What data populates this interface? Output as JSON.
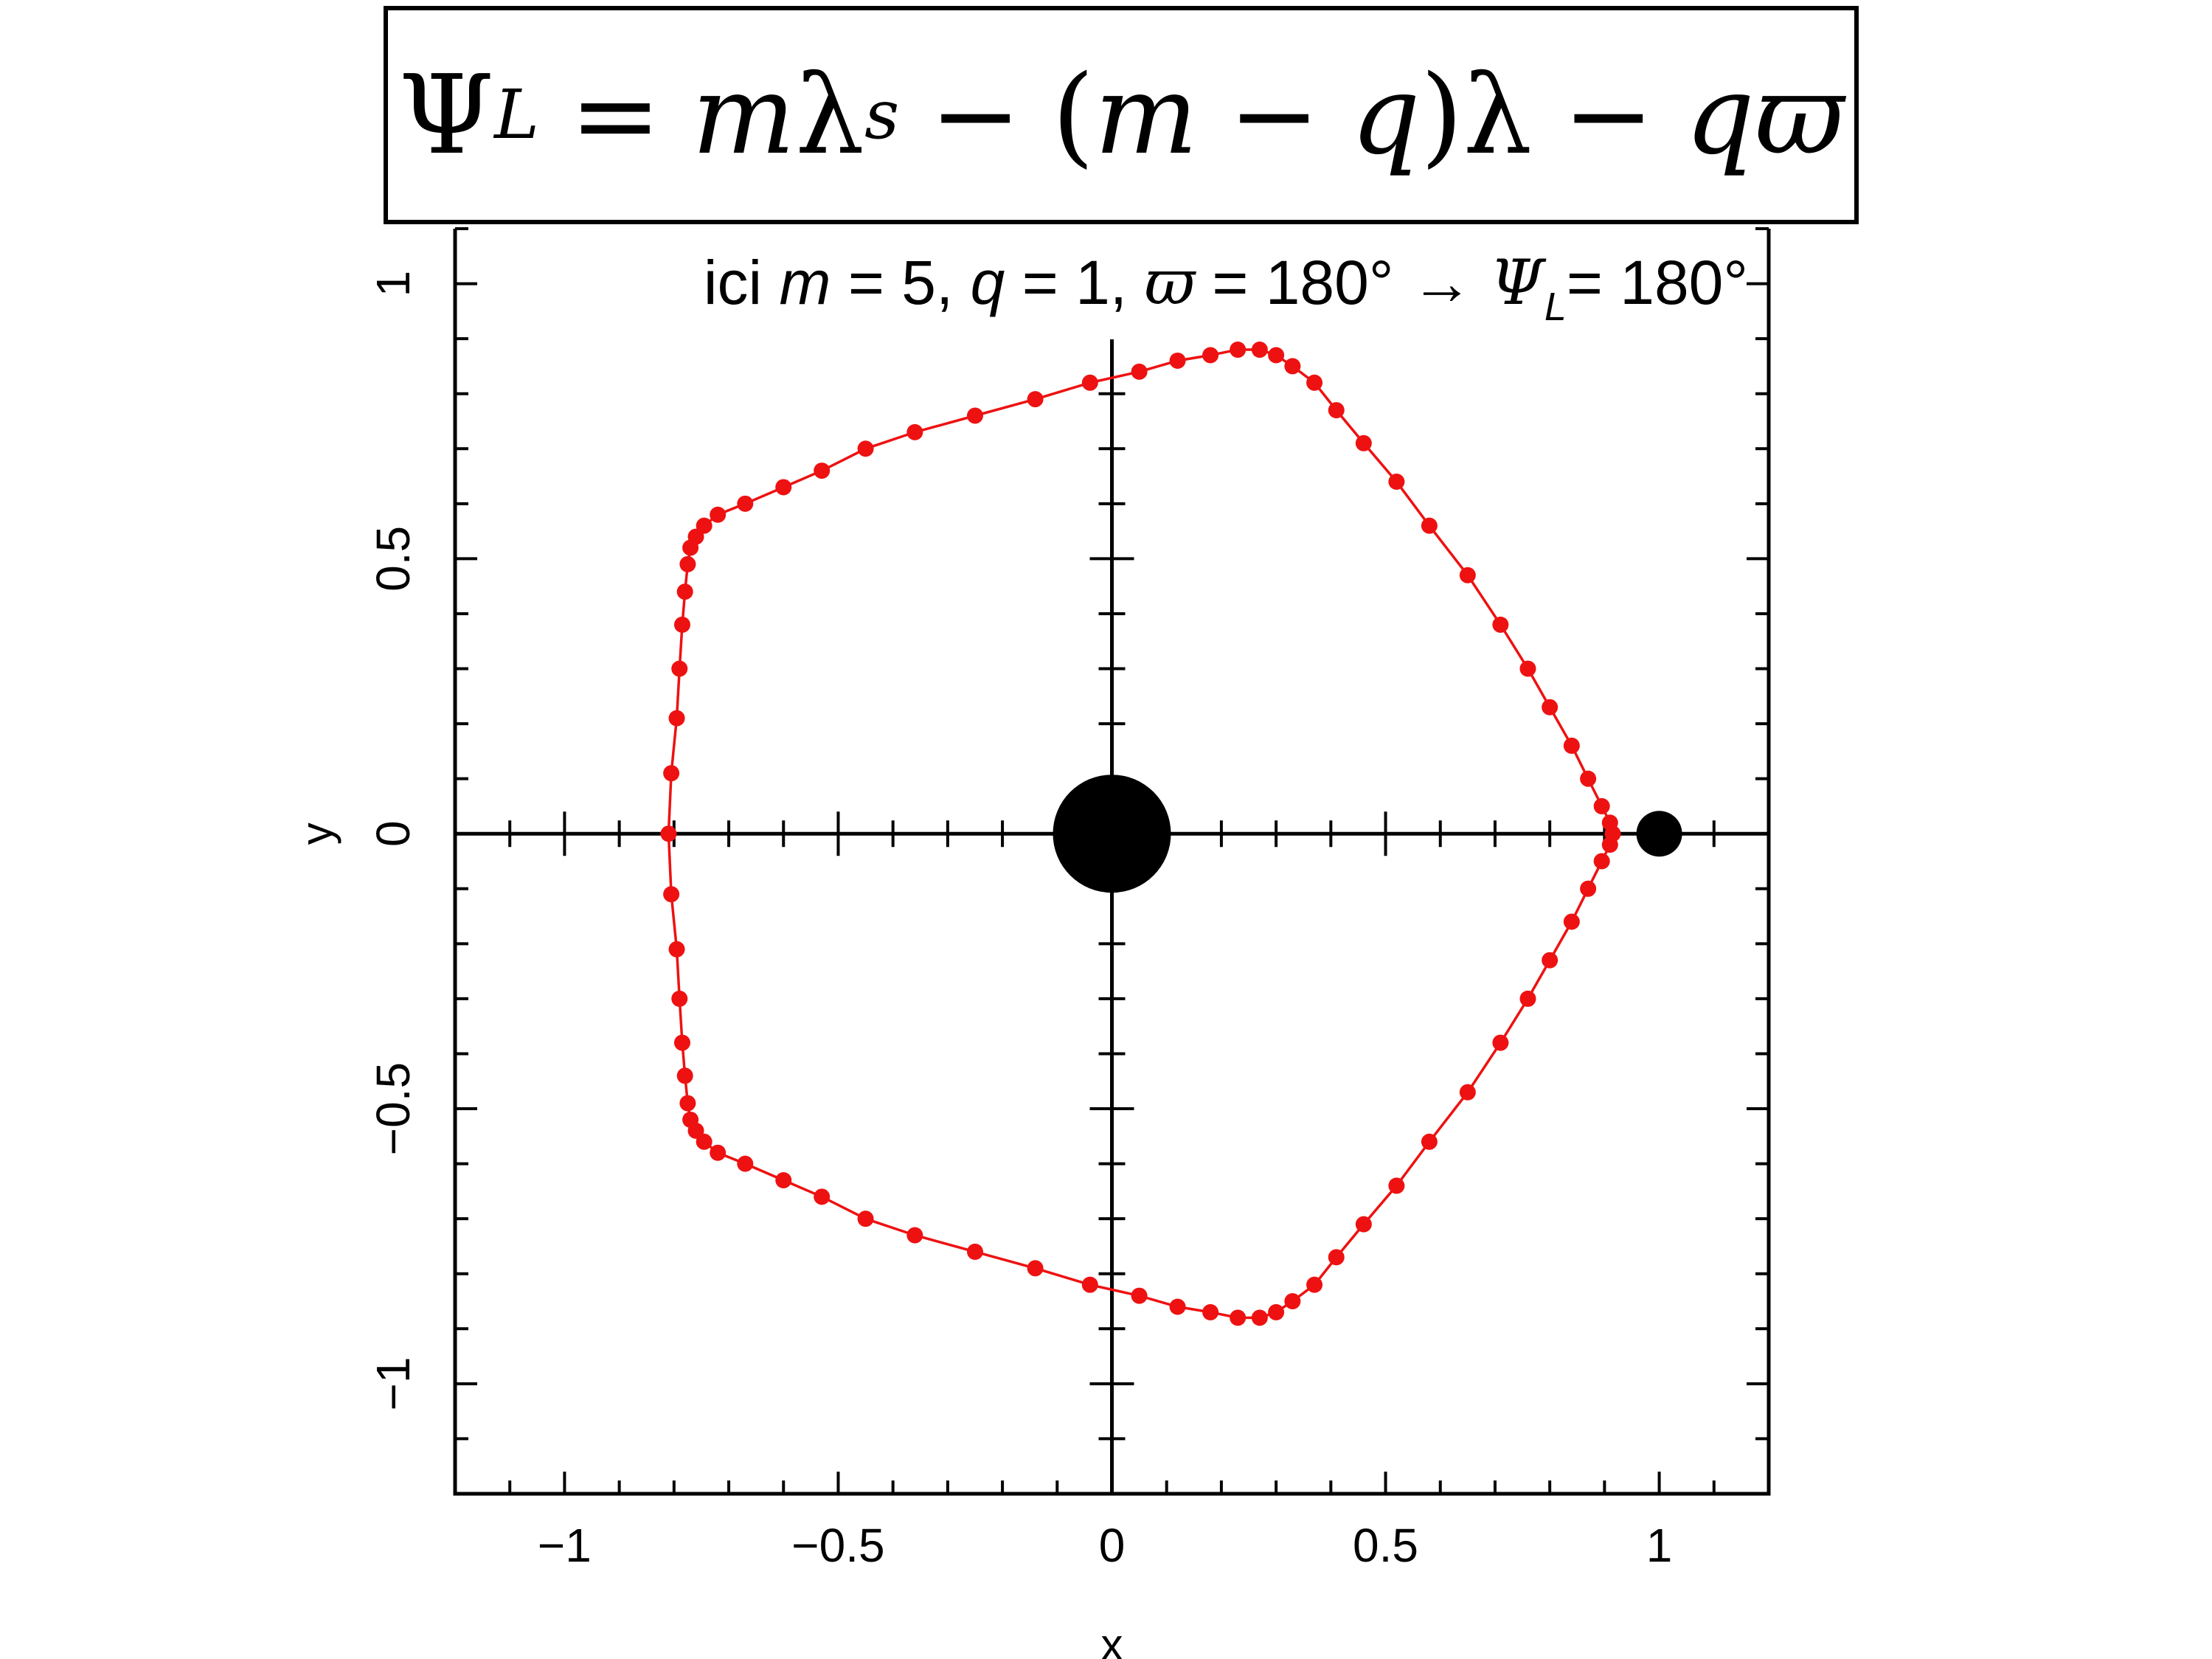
{
  "formula": {
    "psi": "Ψ",
    "psi_sub": "L",
    "eq": "=",
    "m1": "m",
    "lambda_s": "λ",
    "lambda_s_sub": "s",
    "minus1": "−",
    "paren_open": "(",
    "m2": "m",
    "minus2": "−",
    "q1": "q",
    "paren_close": ")",
    "lambda": "λ",
    "minus3": "−",
    "q2": "q",
    "varpi": "ϖ"
  },
  "annotation": {
    "prefix": "ici ",
    "m_sym": "m",
    "m_val": " = 5, ",
    "q_sym": "q",
    "q_val": " = 1, ",
    "varpi_sym": "ϖ",
    "varpi_val": " = 180° → ",
    "psi_sym": "Ψ",
    "psi_sub": "L",
    "psi_val": "= 180°"
  },
  "chart_data": {
    "type": "scatter",
    "xlabel": "x",
    "ylabel": "y",
    "xlim": [
      -1.2,
      1.2
    ],
    "ylim": [
      -1.2,
      1.1
    ],
    "x_ticks": [
      -1,
      -0.5,
      0,
      0.5,
      1
    ],
    "x_tick_labels": [
      "−1",
      "−0.5",
      "0",
      "0.5",
      "1"
    ],
    "y_ticks": [
      -1,
      -0.5,
      0,
      0.5,
      1
    ],
    "y_tick_labels": [
      "−1",
      "−0.5",
      "0",
      "0.5",
      "1"
    ],
    "minor_tick_step": 0.1,
    "grid": false,
    "colors": {
      "trajectory": "#ee1111",
      "bodies": "#000000",
      "axes": "#000000"
    },
    "bodies": [
      {
        "name": "primary",
        "x": 0,
        "y": 0,
        "size": "large"
      },
      {
        "name": "secondary",
        "x": 1,
        "y": 0,
        "size": "small"
      }
    ],
    "series": [
      {
        "type": "line+markers",
        "closed": true,
        "points": [
          [
            -0.81,
            0.0
          ],
          [
            -0.805,
            0.11
          ],
          [
            -0.795,
            0.21
          ],
          [
            -0.79,
            0.3
          ],
          [
            -0.785,
            0.38
          ],
          [
            -0.78,
            0.44
          ],
          [
            -0.775,
            0.49
          ],
          [
            -0.77,
            0.52
          ],
          [
            -0.76,
            0.54
          ],
          [
            -0.745,
            0.56
          ],
          [
            -0.72,
            0.58
          ],
          [
            -0.67,
            0.6
          ],
          [
            -0.6,
            0.63
          ],
          [
            -0.53,
            0.66
          ],
          [
            -0.45,
            0.7
          ],
          [
            -0.36,
            0.73
          ],
          [
            -0.25,
            0.76
          ],
          [
            -0.14,
            0.79
          ],
          [
            -0.04,
            0.82
          ],
          [
            0.05,
            0.84
          ],
          [
            0.12,
            0.86
          ],
          [
            0.18,
            0.87
          ],
          [
            0.23,
            0.88
          ],
          [
            0.27,
            0.88
          ],
          [
            0.3,
            0.87
          ],
          [
            0.33,
            0.85
          ],
          [
            0.37,
            0.82
          ],
          [
            0.41,
            0.77
          ],
          [
            0.46,
            0.71
          ],
          [
            0.52,
            0.64
          ],
          [
            0.58,
            0.56
          ],
          [
            0.65,
            0.47
          ],
          [
            0.71,
            0.38
          ],
          [
            0.76,
            0.3
          ],
          [
            0.8,
            0.23
          ],
          [
            0.84,
            0.16
          ],
          [
            0.87,
            0.1
          ],
          [
            0.895,
            0.05
          ],
          [
            0.91,
            0.02
          ],
          [
            0.915,
            0.0
          ],
          [
            0.91,
            -0.02
          ],
          [
            0.895,
            -0.05
          ],
          [
            0.87,
            -0.1
          ],
          [
            0.84,
            -0.16
          ],
          [
            0.8,
            -0.23
          ],
          [
            0.76,
            -0.3
          ],
          [
            0.71,
            -0.38
          ],
          [
            0.65,
            -0.47
          ],
          [
            0.58,
            -0.56
          ],
          [
            0.52,
            -0.64
          ],
          [
            0.46,
            -0.71
          ],
          [
            0.41,
            -0.77
          ],
          [
            0.37,
            -0.82
          ],
          [
            0.33,
            -0.85
          ],
          [
            0.3,
            -0.87
          ],
          [
            0.27,
            -0.88
          ],
          [
            0.23,
            -0.88
          ],
          [
            0.18,
            -0.87
          ],
          [
            0.12,
            -0.86
          ],
          [
            0.05,
            -0.84
          ],
          [
            -0.04,
            -0.82
          ],
          [
            -0.14,
            -0.79
          ],
          [
            -0.25,
            -0.76
          ],
          [
            -0.36,
            -0.73
          ],
          [
            -0.45,
            -0.7
          ],
          [
            -0.53,
            -0.66
          ],
          [
            -0.6,
            -0.63
          ],
          [
            -0.67,
            -0.6
          ],
          [
            -0.72,
            -0.58
          ],
          [
            -0.745,
            -0.56
          ],
          [
            -0.76,
            -0.54
          ],
          [
            -0.77,
            -0.52
          ],
          [
            -0.775,
            -0.49
          ],
          [
            -0.78,
            -0.44
          ],
          [
            -0.785,
            -0.38
          ],
          [
            -0.79,
            -0.3
          ],
          [
            -0.795,
            -0.21
          ],
          [
            -0.805,
            -0.11
          ]
        ]
      }
    ]
  }
}
